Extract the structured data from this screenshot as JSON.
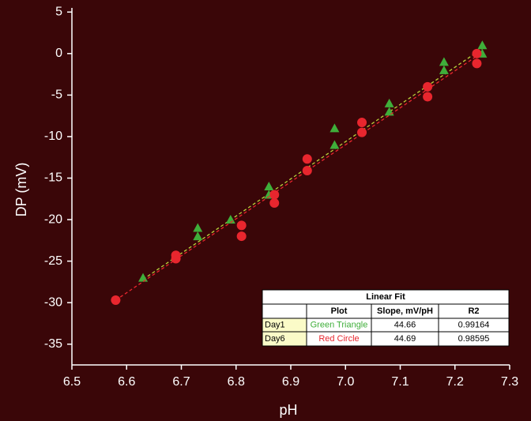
{
  "chart_data": {
    "type": "scatter",
    "x_label": "pH",
    "y_label": "DP (mV)",
    "xlim": [
      6.5,
      7.3
    ],
    "ylim": [
      -37.5,
      5.5
    ],
    "xticks": [
      6.5,
      6.6,
      6.7,
      6.8,
      6.9,
      {
        "value": 7,
        "label": "7.0"
      },
      7.1,
      7.2,
      7.3
    ],
    "yticks": [
      5,
      0,
      -5,
      -10,
      -15,
      -20,
      -25,
      -30,
      -35
    ],
    "series": [
      {
        "name": "Day1",
        "color": "#3fae3a",
        "marker": "triangle",
        "fit_color": "#b8d23a",
        "x": [
          6.63,
          6.73,
          6.73,
          6.79,
          6.86,
          6.86,
          6.98,
          6.98,
          7.08,
          7.08,
          7.18,
          7.18,
          7.25,
          7.25
        ],
        "values": [
          -27,
          -21,
          -22,
          -20,
          -16,
          -17,
          -9,
          -11,
          -6,
          -7,
          -1,
          -2,
          1,
          0
        ],
        "fit_x": [
          6.63,
          7.25
        ],
        "fit_y": [
          -27.2,
          0.6
        ]
      },
      {
        "name": "Day6",
        "color": "#e8262e",
        "marker": "circle",
        "fit_color": "#e8262e",
        "x": [
          6.58,
          6.69,
          6.69,
          6.81,
          6.81,
          6.87,
          6.87,
          6.93,
          6.93,
          7.03,
          7.03,
          7.15,
          7.15,
          7.24,
          7.24
        ],
        "values": [
          -29.7,
          -24.3,
          -24.7,
          -20.7,
          -22,
          -17,
          -18,
          -12.7,
          -14.1,
          -8.3,
          -9.5,
          -4,
          -5.2,
          0,
          -1.2
        ],
        "fit_x": [
          6.58,
          7.24
        ],
        "fit_y": [
          -29.7,
          -0.3
        ]
      }
    ],
    "fit_table": {
      "title": "Linear Fit",
      "columns": [
        "Plot",
        "Slope, mV/pH",
        "R2"
      ],
      "rows": [
        [
          "Day1",
          "Green Triangle",
          44.66,
          0.99164
        ],
        [
          "Day6",
          "Red Circle",
          44.69,
          0.98595
        ]
      ]
    }
  }
}
